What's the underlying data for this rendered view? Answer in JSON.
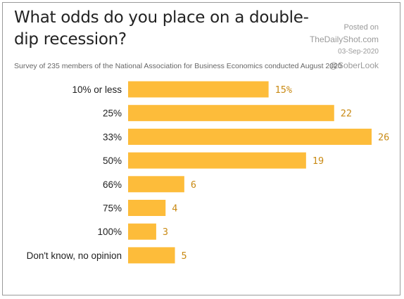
{
  "header": {
    "title": "What odds do you place on a double-dip recession?",
    "subtitle": "Survey of 235 members of the National Association for Business Economics conducted August 2020"
  },
  "watermark": {
    "posted": "Posted on",
    "site": "TheDailyShot.com",
    "date": "03-Sep-2020",
    "handle": "@SoberLook"
  },
  "colors": {
    "bar": "#fdbc3a",
    "value_label": "#c98a14"
  },
  "chart_data": {
    "type": "bar",
    "orientation": "horizontal",
    "categories": [
      "10% or less",
      "25%",
      "33%",
      "50%",
      "66%",
      "75%",
      "100%",
      "Don't know, no opinion"
    ],
    "values": [
      15,
      22,
      26,
      19,
      6,
      4,
      3,
      5
    ],
    "value_labels": [
      "15%",
      "22",
      "26",
      "19",
      "6",
      "4",
      "3",
      "5"
    ],
    "xlim": [
      0,
      26
    ],
    "grid": false,
    "legend": "none"
  }
}
